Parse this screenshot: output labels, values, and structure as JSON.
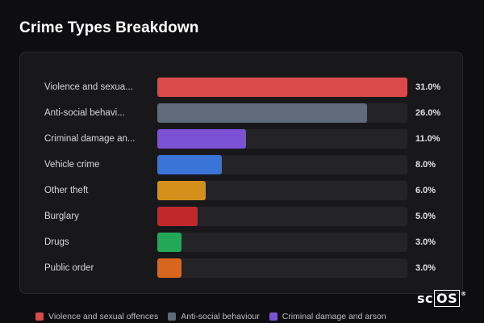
{
  "header": {
    "title": "Crime Types Breakdown"
  },
  "chart_data": {
    "type": "bar",
    "orientation": "horizontal",
    "categories": [
      "Violence and sexua...",
      "Anti-social behavi...",
      "Criminal damage an...",
      "Vehicle crime",
      "Other theft",
      "Burglary",
      "Drugs",
      "Public order"
    ],
    "values": [
      31.0,
      26.0,
      11.0,
      8.0,
      6.0,
      5.0,
      3.0,
      3.0
    ],
    "value_labels": [
      "31.0%",
      "26.0%",
      "11.0%",
      "8.0%",
      "6.0%",
      "5.0%",
      "3.0%",
      "3.0%"
    ],
    "colors": [
      "#d94a4a",
      "#5f6b7a",
      "#7b52d6",
      "#3a74d6",
      "#d4901a",
      "#c0282c",
      "#22a857",
      "#d9661e"
    ],
    "xlim": [
      0,
      31
    ],
    "grid": false,
    "legend": "bottom"
  },
  "legend": {
    "items": [
      {
        "label": "Violence and sexual offences",
        "color": "#d94a4a"
      },
      {
        "label": "Anti-social behaviour",
        "color": "#5f6b7a"
      },
      {
        "label": "Criminal damage and arson",
        "color": "#7b52d6"
      }
    ]
  },
  "brand": {
    "text_a": "sc",
    "text_b": "OS",
    "mark": "®"
  }
}
